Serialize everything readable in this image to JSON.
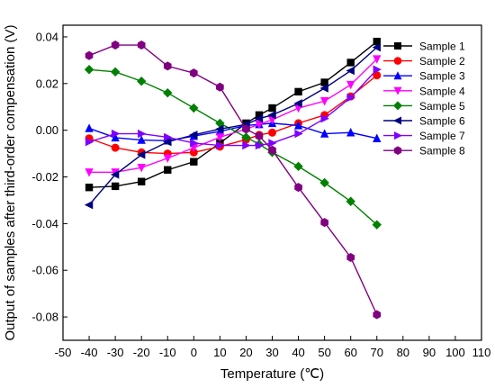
{
  "chart_data": {
    "type": "line",
    "xlabel": "Temperature (℃)",
    "ylabel": "Output of samples after third-order compensation (V)",
    "xlim": [
      -50,
      110
    ],
    "ylim": [
      -0.09,
      0.045
    ],
    "xticks": [
      -50,
      -40,
      -30,
      -20,
      -10,
      0,
      10,
      20,
      30,
      40,
      50,
      60,
      70,
      80,
      90,
      100,
      110
    ],
    "yticks": [
      -0.08,
      -0.06,
      -0.04,
      -0.02,
      0.0,
      0.02,
      0.04
    ],
    "ytick_labels": [
      "-0.08",
      "-0.06",
      "-0.04",
      "-0.02",
      "0.00",
      "0.02",
      "0.04"
    ],
    "legend_position": "top-right",
    "grid": false,
    "series": [
      {
        "name": "Sample 1",
        "color": "#000000",
        "marker": "square",
        "x": [
          -40,
          -30,
          -20,
          -10,
          0,
          10,
          20,
          25,
          30,
          40,
          50,
          60,
          70
        ],
        "y": [
          -0.0245,
          -0.024,
          -0.022,
          -0.017,
          -0.0135,
          -0.0055,
          0.003,
          0.0065,
          0.0095,
          0.0165,
          0.0205,
          0.029,
          0.038
        ]
      },
      {
        "name": "Sample 2",
        "color": "#ff0000",
        "marker": "circle",
        "x": [
          -40,
          -30,
          -20,
          -10,
          0,
          10,
          20,
          25,
          30,
          40,
          50,
          60,
          70
        ],
        "y": [
          -0.0035,
          -0.0075,
          -0.0095,
          -0.01,
          -0.0095,
          -0.007,
          -0.004,
          -0.002,
          -0.001,
          0.003,
          0.0065,
          0.0145,
          0.0235
        ]
      },
      {
        "name": "Sample 3",
        "color": "#0000ff",
        "marker": "triangle-up",
        "x": [
          -40,
          -30,
          -20,
          -10,
          0,
          10,
          20,
          25,
          30,
          40,
          50,
          60,
          70
        ],
        "y": [
          0.0008,
          -0.0032,
          -0.0042,
          -0.0045,
          -0.0025,
          -0.0005,
          0.002,
          0.0025,
          0.003,
          0.002,
          -0.0015,
          -0.001,
          -0.0035
        ]
      },
      {
        "name": "Sample 4",
        "color": "#ff00ff",
        "marker": "triangle-down",
        "x": [
          -40,
          -30,
          -20,
          -10,
          0,
          10,
          20,
          25,
          30,
          40,
          50,
          60,
          70
        ],
        "y": [
          -0.018,
          -0.018,
          -0.016,
          -0.012,
          -0.0075,
          -0.003,
          0.0005,
          0.0025,
          0.0045,
          0.0095,
          0.0125,
          0.0195,
          0.0305
        ]
      },
      {
        "name": "Sample 5",
        "color": "#008000",
        "marker": "diamond",
        "x": [
          -40,
          -30,
          -20,
          -10,
          0,
          10,
          20,
          25,
          30,
          40,
          50,
          60,
          70
        ],
        "y": [
          0.026,
          0.025,
          0.021,
          0.016,
          0.0095,
          0.003,
          -0.003,
          -0.006,
          -0.0095,
          -0.0155,
          -0.0225,
          -0.0305,
          -0.0405
        ]
      },
      {
        "name": "Sample 6",
        "color": "#000080",
        "marker": "triangle-left",
        "x": [
          -40,
          -30,
          -20,
          -10,
          0,
          10,
          20,
          25,
          30,
          40,
          50,
          60,
          70
        ],
        "y": [
          -0.032,
          -0.019,
          -0.0105,
          -0.005,
          -0.002,
          0.0005,
          0.0025,
          0.005,
          0.0065,
          0.0115,
          0.018,
          0.0255,
          0.0355
        ]
      },
      {
        "name": "Sample 7",
        "color": "#8000ff",
        "marker": "triangle-right",
        "x": [
          -40,
          -30,
          -20,
          -10,
          0,
          10,
          20,
          25,
          30,
          40,
          50,
          60,
          70
        ],
        "y": [
          -0.005,
          -0.0015,
          -0.0015,
          -0.003,
          -0.0055,
          -0.0065,
          -0.0065,
          -0.0065,
          -0.0055,
          -0.0015,
          0.005,
          0.014,
          0.026
        ]
      },
      {
        "name": "Sample 8",
        "color": "#800080",
        "marker": "hexagon",
        "x": [
          -40,
          -30,
          -20,
          -10,
          0,
          10,
          20,
          25,
          30,
          40,
          50,
          60,
          70
        ],
        "y": [
          0.032,
          0.0365,
          0.0365,
          0.0275,
          0.0245,
          0.0185,
          0.0005,
          -0.0025,
          -0.0085,
          -0.0245,
          -0.0395,
          -0.0545,
          -0.079
        ]
      }
    ]
  }
}
